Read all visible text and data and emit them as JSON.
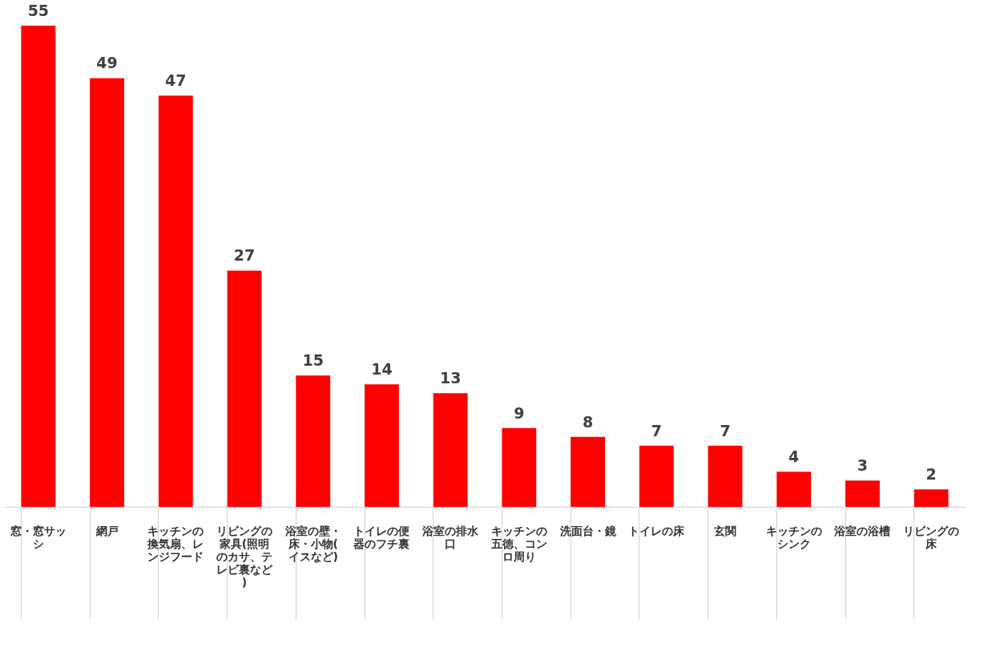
{
  "chart_data": {
    "type": "bar",
    "categories": [
      "窓・窓サッシ",
      "網戸",
      "キッチンの換気扇、レンジフード",
      "リビングの家具(照明のカサ、テレビ裏など)",
      "浴室の壁・床・小物(イスなど)",
      "トイレの便器のフチ裏",
      "浴室の排水口",
      "キッチンの五徳、コンロ周り",
      "洗面台・鏡",
      "トイレの床",
      "玄関",
      "キッチンのシンク",
      "浴室の浴槽",
      "リビングの床"
    ],
    "values": [
      55,
      49,
      47,
      27,
      15,
      14,
      13,
      9,
      8,
      7,
      7,
      4,
      3,
      2
    ],
    "color": "#ff0000",
    "data_labels": true
  }
}
